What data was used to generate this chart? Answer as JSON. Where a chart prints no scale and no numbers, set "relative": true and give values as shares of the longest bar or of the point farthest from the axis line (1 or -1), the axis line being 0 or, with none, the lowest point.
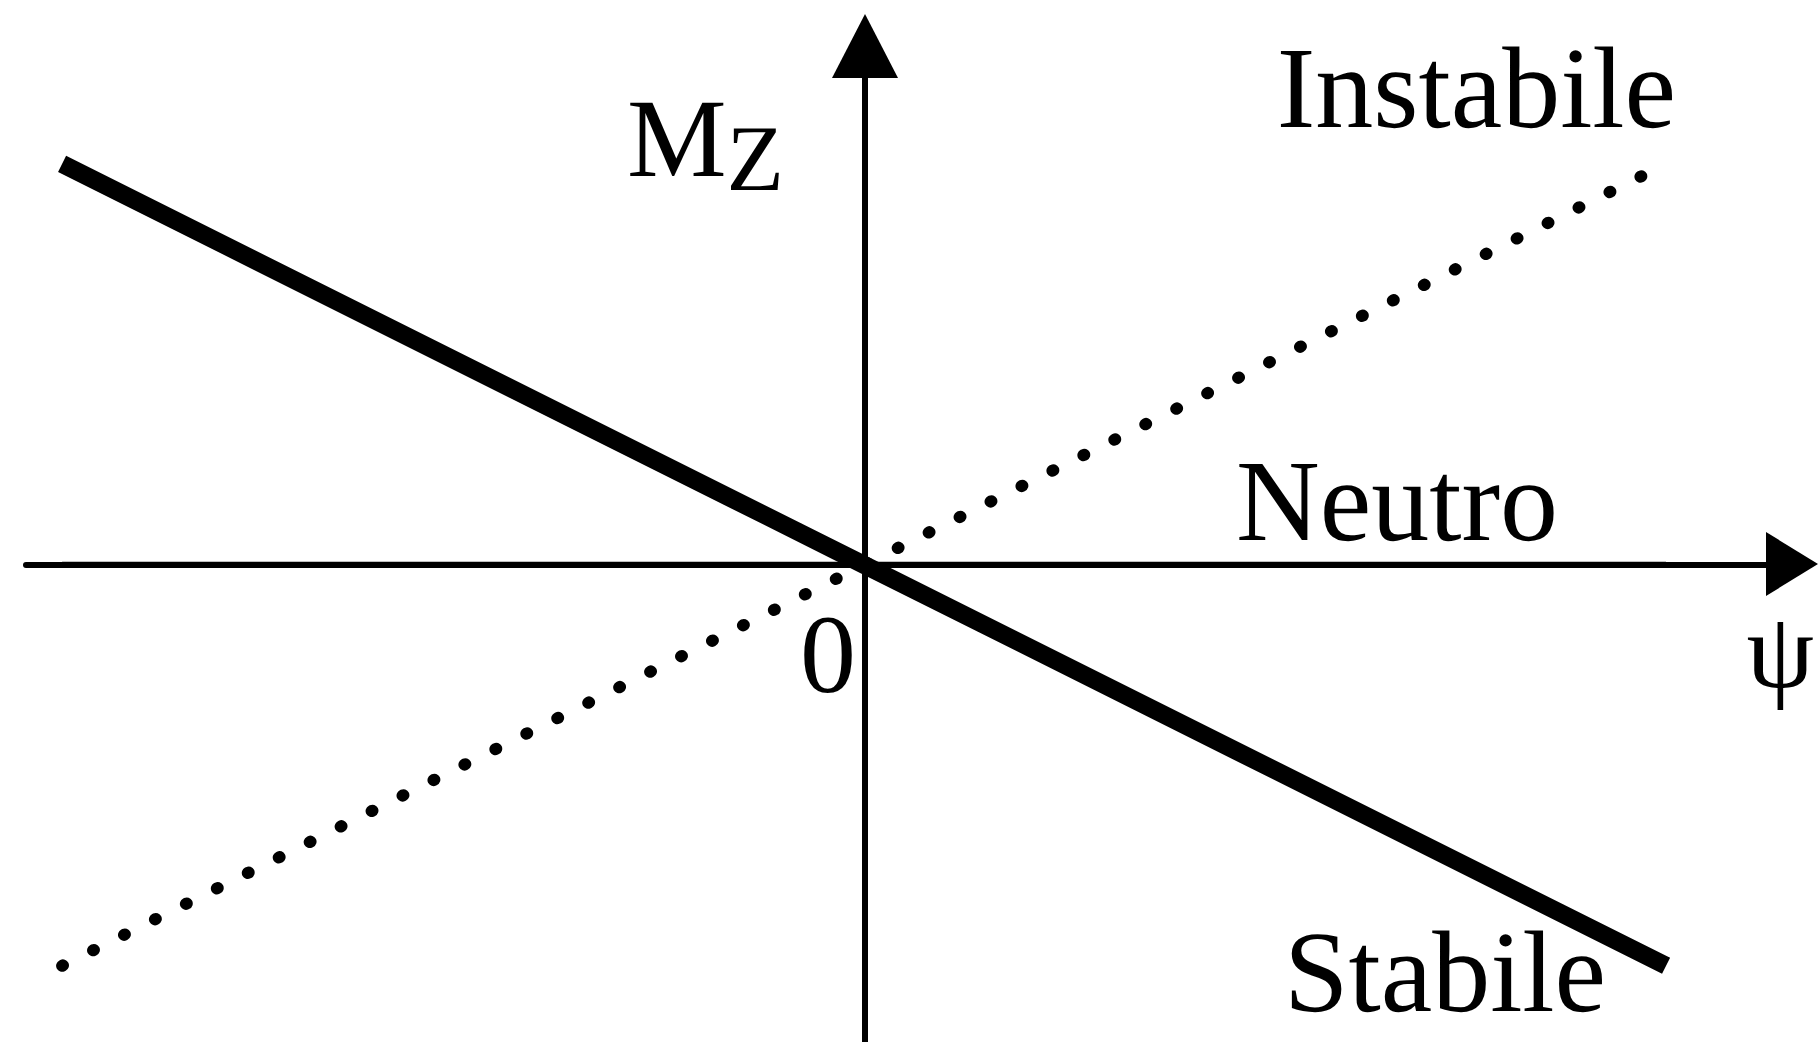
{
  "chart_data": {
    "type": "line",
    "relative": true,
    "xlabel": "ψ",
    "ylabel": "M$_{Z}$",
    "categories": [
      null,
      null,
      null
    ],
    "marker": "none",
    "annotations": [
      {
        "text": "0",
        "y": 0
      }
    ],
    "series": [
      {
        "name": "Stabile",
        "color": "#000000",
        "line_style": "solid",
        "values": [
          1,
          0,
          -1
        ]
      },
      {
        "name": "Instabile",
        "color": "#000000",
        "line_style": "dotted",
        "values": [
          -1,
          0,
          1
        ]
      },
      {
        "name": "Neutro",
        "color": "#000000",
        "line_style": "solid",
        "values": [
          0,
          0,
          0
        ]
      }
    ]
  }
}
